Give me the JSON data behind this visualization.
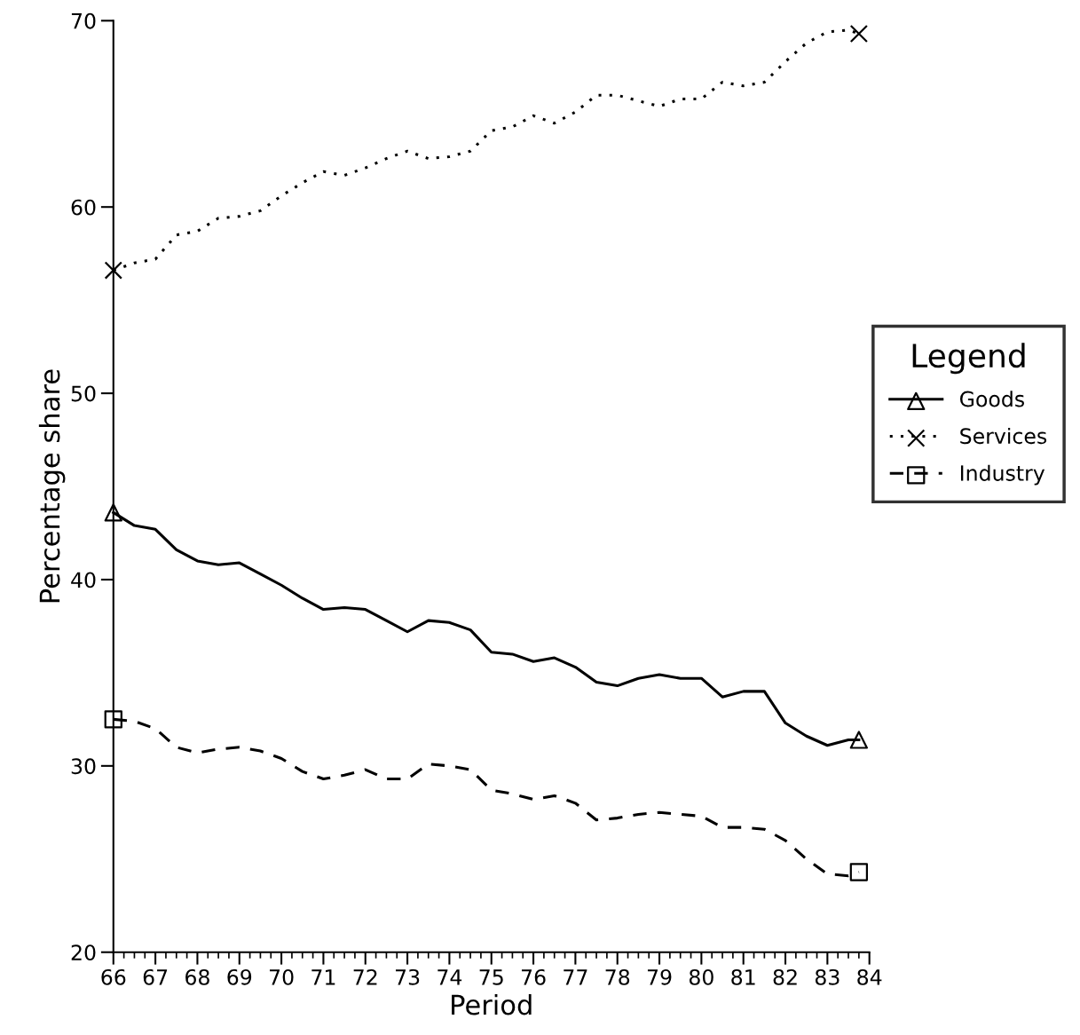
{
  "chart_data": {
    "type": "line",
    "xlabel": "Period",
    "ylabel": "Percentage share",
    "legend_title": "Legend",
    "legend": "right",
    "grid": false,
    "x": [
      66,
      66.5,
      67,
      67.5,
      68,
      68.5,
      69,
      69.5,
      70,
      70.5,
      71,
      71.5,
      72,
      72.5,
      73,
      73.5,
      74,
      74.5,
      75,
      75.5,
      76,
      76.5,
      77,
      77.5,
      78,
      78.5,
      79,
      79.5,
      80,
      80.5,
      81,
      81.5,
      82,
      82.5,
      83,
      83.5,
      83.75
    ],
    "series": [
      {
        "name": "Goods",
        "color": "#000000",
        "line_style": "solid",
        "values": [
          43.6,
          42.9,
          42.7,
          41.6,
          41.0,
          40.8,
          40.9,
          40.3,
          39.7,
          39.0,
          38.4,
          38.5,
          38.4,
          37.8,
          37.2,
          37.8,
          37.7,
          37.3,
          36.1,
          36.0,
          35.6,
          35.8,
          35.3,
          34.5,
          34.3,
          34.7,
          34.9,
          34.7,
          34.7,
          33.7,
          34.0,
          34.0,
          32.3,
          31.6,
          31.1,
          31.4,
          31.4
        ]
      },
      {
        "name": "Services",
        "color": "#000000",
        "line_style": "dotted",
        "values": [
          56.6,
          57.0,
          57.2,
          58.5,
          58.7,
          59.4,
          59.5,
          59.8,
          60.6,
          61.3,
          61.9,
          61.7,
          62.1,
          62.6,
          63.0,
          62.6,
          62.7,
          63.0,
          64.1,
          64.3,
          64.9,
          64.5,
          65.1,
          66.0,
          66.0,
          65.7,
          65.4,
          65.8,
          65.8,
          66.7,
          66.5,
          66.7,
          67.8,
          68.8,
          69.4,
          69.5,
          69.3
        ]
      },
      {
        "name": "Industry",
        "color": "#000000",
        "line_style": "dashed",
        "values": [
          32.5,
          32.4,
          32.0,
          31.0,
          30.7,
          30.9,
          31.0,
          30.8,
          30.4,
          29.7,
          29.3,
          29.5,
          29.8,
          29.3,
          29.3,
          30.1,
          30.0,
          29.8,
          28.7,
          28.5,
          28.2,
          28.4,
          28.0,
          27.1,
          27.2,
          27.4,
          27.5,
          27.4,
          27.3,
          26.7,
          26.7,
          26.6,
          26.0,
          25.0,
          24.2,
          24.1,
          24.3
        ]
      },
      {
        "type": "scatter",
        "color": "#000000",
        "marker": "triangle",
        "values": [
          43.6,
          null,
          null,
          null,
          null,
          null,
          null,
          null,
          null,
          null,
          null,
          null,
          null,
          null,
          null,
          null,
          null,
          null,
          null,
          null,
          null,
          null,
          null,
          null,
          null,
          null,
          null,
          null,
          null,
          null,
          null,
          null,
          null,
          null,
          null,
          null,
          31.4
        ]
      },
      {
        "type": "scatter",
        "color": "#000000",
        "marker": "cross",
        "values": [
          56.6,
          null,
          null,
          null,
          null,
          null,
          null,
          null,
          null,
          null,
          null,
          null,
          null,
          null,
          null,
          null,
          null,
          null,
          null,
          null,
          null,
          null,
          null,
          null,
          null,
          null,
          null,
          null,
          null,
          null,
          null,
          null,
          null,
          null,
          null,
          null,
          69.3
        ]
      },
      {
        "type": "scatter",
        "color": "#000000",
        "marker": "square",
        "values": [
          32.5,
          null,
          null,
          null,
          null,
          null,
          null,
          null,
          null,
          null,
          null,
          null,
          null,
          null,
          null,
          null,
          null,
          null,
          null,
          null,
          null,
          null,
          null,
          null,
          null,
          null,
          null,
          null,
          null,
          null,
          null,
          null,
          null,
          null,
          null,
          null,
          24.3
        ]
      }
    ],
    "xlim": [
      66,
      84
    ],
    "xticks": [
      66,
      67,
      68,
      69,
      70,
      71,
      72,
      73,
      74,
      75,
      76,
      77,
      78,
      79,
      80,
      81,
      82,
      83,
      84
    ],
    "ylim": [
      20,
      70
    ],
    "yticks": [
      20,
      30,
      40,
      50,
      60,
      70
    ]
  }
}
